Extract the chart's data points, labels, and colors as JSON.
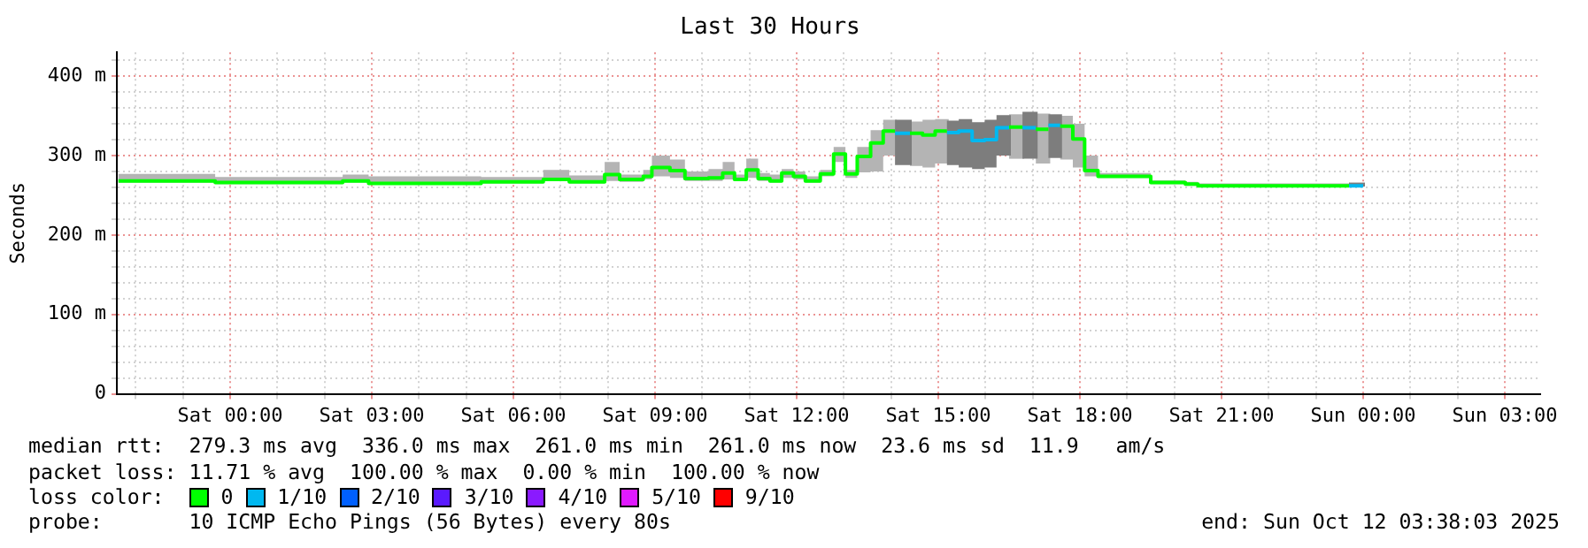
{
  "chart_data": {
    "type": "step",
    "title": "Last 30 Hours",
    "ylabel": "Seconds",
    "legend_title": "loss color:",
    "legend": "bottom",
    "grid": true,
    "xlim": [
      "2025-10-10T21:36",
      "2025-10-12T03:45"
    ],
    "xticks": [
      {
        "value": "2025-10-10T22:00",
        "label": null
      },
      {
        "value": "2025-10-10T23:00",
        "label": null
      },
      {
        "value": "2025-10-11T00:00",
        "label": "Sat 00:00"
      },
      {
        "value": "2025-10-11T01:00",
        "label": null
      },
      {
        "value": "2025-10-11T02:00",
        "label": null
      },
      {
        "value": "2025-10-11T03:00",
        "label": "Sat 03:00"
      },
      {
        "value": "2025-10-11T04:00",
        "label": null
      },
      {
        "value": "2025-10-11T05:00",
        "label": null
      },
      {
        "value": "2025-10-11T06:00",
        "label": "Sat 06:00"
      },
      {
        "value": "2025-10-11T07:00",
        "label": null
      },
      {
        "value": "2025-10-11T08:00",
        "label": null
      },
      {
        "value": "2025-10-11T09:00",
        "label": "Sat 09:00"
      },
      {
        "value": "2025-10-11T10:00",
        "label": null
      },
      {
        "value": "2025-10-11T11:00",
        "label": null
      },
      {
        "value": "2025-10-11T12:00",
        "label": "Sat 12:00"
      },
      {
        "value": "2025-10-11T13:00",
        "label": null
      },
      {
        "value": "2025-10-11T14:00",
        "label": null
      },
      {
        "value": "2025-10-11T15:00",
        "label": "Sat 15:00"
      },
      {
        "value": "2025-10-11T16:00",
        "label": null
      },
      {
        "value": "2025-10-11T17:00",
        "label": null
      },
      {
        "value": "2025-10-11T18:00",
        "label": "Sat 18:00"
      },
      {
        "value": "2025-10-11T19:00",
        "label": null
      },
      {
        "value": "2025-10-11T20:00",
        "label": null
      },
      {
        "value": "2025-10-11T21:00",
        "label": "Sat 21:00"
      },
      {
        "value": "2025-10-11T22:00",
        "label": null
      },
      {
        "value": "2025-10-11T23:00",
        "label": null
      },
      {
        "value": "2025-10-12T00:00",
        "label": "Sun 00:00"
      },
      {
        "value": "2025-10-12T01:00",
        "label": null
      },
      {
        "value": "2025-10-12T02:00",
        "label": null
      },
      {
        "value": "2025-10-12T03:00",
        "label": "Sun 03:00"
      }
    ],
    "ylim": [
      0,
      430
    ],
    "yticks": [
      0,
      {
        "value": 20,
        "label": null
      },
      {
        "value": 40,
        "label": null
      },
      {
        "value": 60,
        "label": null
      },
      {
        "value": 80,
        "label": null
      },
      {
        "value": 100,
        "label": "100 m"
      },
      {
        "value": 120,
        "label": null
      },
      {
        "value": 140,
        "label": null
      },
      {
        "value": 160,
        "label": null
      },
      {
        "value": 180,
        "label": null
      },
      {
        "value": 200,
        "label": "200 m"
      },
      {
        "value": 220,
        "label": null
      },
      {
        "value": 240,
        "label": null
      },
      {
        "value": 260,
        "label": null
      },
      {
        "value": 280,
        "label": null
      },
      {
        "value": 300,
        "label": "300 m"
      },
      {
        "value": 320,
        "label": null
      },
      {
        "value": 340,
        "label": null
      },
      {
        "value": 360,
        "label": null
      },
      {
        "value": 380,
        "label": null
      },
      {
        "value": 400,
        "label": "400 m"
      },
      {
        "value": 420,
        "label": null
      }
    ],
    "series": [
      {
        "name": "0",
        "color": "#00ff00",
        "x": [
          "2025-10-10T21:38",
          "2025-10-10T23:41",
          "2025-10-11T02:23",
          "2025-10-11T02:56",
          "2025-10-11T05:19",
          "2025-10-11T06:38",
          "2025-10-11T07:11",
          "2025-10-11T07:56",
          "2025-10-11T08:15",
          "2025-10-11T08:45",
          "2025-10-11T08:56",
          "2025-10-11T09:19",
          "2025-10-11T09:38",
          "2025-10-11T10:08",
          "2025-10-11T10:26",
          "2025-10-11T10:41",
          "2025-10-11T10:56",
          "2025-10-11T11:11",
          "2025-10-11T11:26",
          "2025-10-11T11:41",
          "2025-10-11T11:56",
          "2025-10-11T12:11",
          "2025-10-11T12:30",
          "2025-10-11T12:47",
          "2025-10-11T13:02",
          "2025-10-11T13:17",
          "2025-10-11T13:34",
          "2025-10-11T13:50",
          "2025-10-11T14:05",
          "2025-10-11T14:12",
          "2025-10-11T14:24",
          "2025-10-11T14:40",
          "2025-10-11T14:56",
          "2025-10-11T15:11",
          "2025-10-11T15:18",
          "2025-10-11T16:30",
          "2025-10-11T16:47",
          "2025-10-11T16:54",
          "2025-10-11T17:04",
          "2025-10-11T17:20",
          "2025-10-11T17:27",
          "2025-10-11T17:35",
          "2025-10-11T17:51",
          "2025-10-11T18:06",
          "2025-10-11T18:23",
          "2025-10-11T19:30",
          "2025-10-11T20:14",
          "2025-10-11T20:30",
          "2025-10-11T23:42"
        ],
        "values": [
          268,
          266,
          268,
          265,
          267,
          270,
          267,
          276,
          270,
          274,
          285,
          281,
          271,
          272,
          278,
          270,
          282,
          271,
          268,
          278,
          274,
          268,
          277,
          302,
          277,
          299,
          316,
          331,
          331,
          null,
          328,
          326,
          331,
          331,
          null,
          336,
          336,
          null,
          333,
          333,
          null,
          337,
          321,
          281,
          274,
          266,
          264,
          262,
          262
        ],
        "lower": [
          266,
          264,
          266,
          264,
          265,
          268,
          265,
          268,
          267,
          270,
          274,
          272,
          268,
          268,
          270,
          268,
          272,
          268,
          266,
          272,
          270,
          266,
          274,
          292,
          272,
          279,
          280,
          300,
          300,
          null,
          287,
          285,
          290,
          290,
          null,
          296,
          296,
          null,
          290,
          290,
          null,
          295,
          285,
          274,
          272,
          264,
          262,
          261,
          261
        ],
        "upper": [
          277,
          273,
          276,
          274,
          273,
          282,
          275,
          292,
          276,
          282,
          300,
          295,
          280,
          283,
          292,
          276,
          296,
          278,
          276,
          283,
          280,
          274,
          282,
          311,
          282,
          311,
          332,
          345,
          345,
          null,
          343,
          345,
          346,
          346,
          null,
          352,
          352,
          null,
          353,
          353,
          null,
          350,
          340,
          300,
          278,
          269,
          267,
          265,
          265
        ]
      },
      {
        "name": "1/10",
        "color": "#00b8f0",
        "x": [
          "2025-10-11T14:05",
          "2025-10-11T14:24",
          "2025-10-11T14:30",
          "2025-10-11T15:11",
          "2025-10-11T15:26",
          "2025-10-11T15:43",
          "2025-10-11T15:59",
          "2025-10-11T16:14",
          "2025-10-11T16:30",
          "2025-10-11T16:36",
          "2025-10-11T16:47",
          "2025-10-11T17:04",
          "2025-10-11T17:09",
          "2025-10-11T17:20",
          "2025-10-11T17:35",
          "2025-10-11T17:42",
          "2025-10-11T23:42",
          "2025-10-12T00:00"
        ],
        "values": [
          328,
          328,
          null,
          329,
          331,
          319,
          320,
          335,
          335,
          null,
          335,
          335,
          null,
          338,
          338,
          null,
          262,
          262
        ],
        "lower": [
          288,
          288,
          null,
          288,
          285,
          283,
          285,
          300,
          300,
          null,
          296,
          296,
          null,
          297,
          297,
          null,
          261,
          261
        ],
        "upper": [
          345,
          345,
          null,
          344,
          346,
          342,
          345,
          351,
          351,
          null,
          355,
          355,
          null,
          352,
          352,
          null,
          266,
          266
        ]
      },
      {
        "name": "2/10",
        "color": "#0060ff"
      },
      {
        "name": "3/10",
        "color": "#5a1aff"
      },
      {
        "name": "4/10",
        "color": "#8a1aff"
      },
      {
        "name": "5/10",
        "color": "#e01aff"
      },
      {
        "name": "9/10",
        "color": "#ff0000"
      }
    ],
    "annotations": [
      "median rtt:  279.3 ms avg  336.0 ms max  261.0 ms min  261.0 ms now  23.6 ms sd  11.9   am/s",
      "packet loss: 11.71 % avg  100.00 % max  0.00 % min  100.00 % now",
      "probe:       10 ICMP Echo Pings (56 Bytes) every 80s",
      "end: Sun Oct 12 03:38:03 2025"
    ]
  }
}
